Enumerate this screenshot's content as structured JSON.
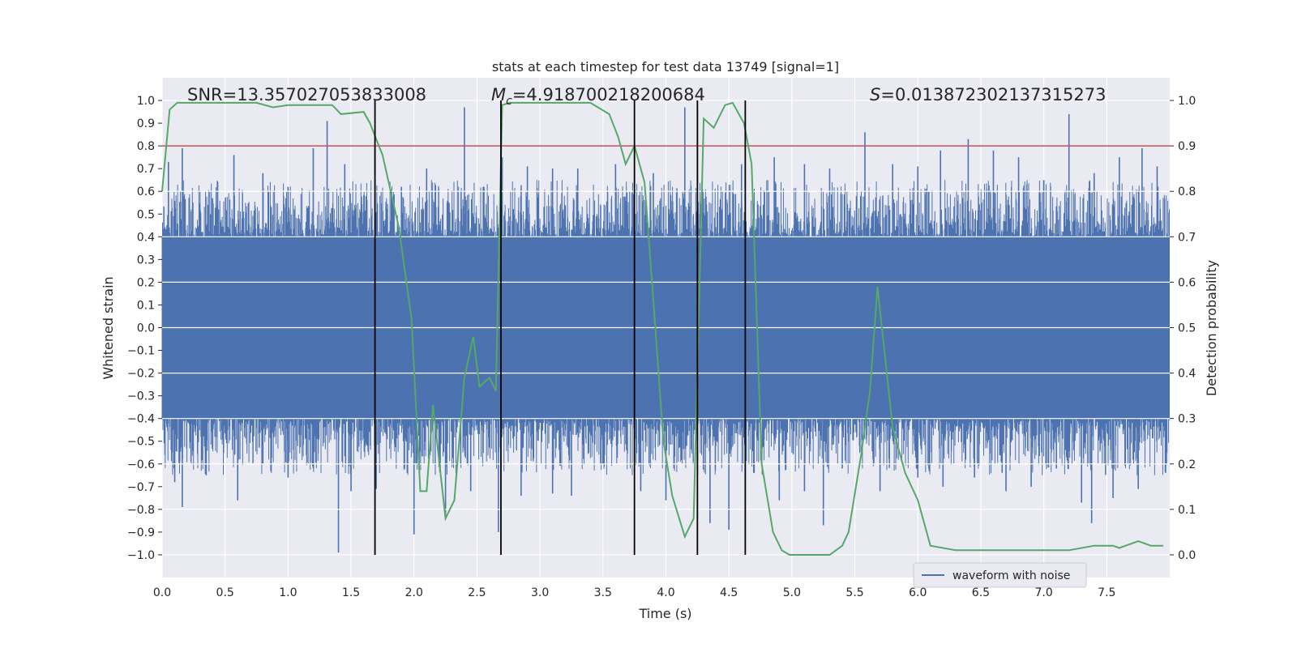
{
  "chart_data": {
    "type": "line",
    "title": "stats at each timestep for test data 13749 [signal=1]",
    "xlabel": "Time (s)",
    "ylabel_left": "Whitened strain",
    "ylabel_right": "Detection probability",
    "xlim": [
      0.0,
      8.0
    ],
    "ylim_left": [
      -1.1,
      1.1
    ],
    "ylim_right": [
      -0.05,
      1.05
    ],
    "x_ticks": [
      "0.0",
      "0.5",
      "1.0",
      "1.5",
      "2.0",
      "2.5",
      "3.0",
      "3.5",
      "4.0",
      "4.5",
      "5.0",
      "5.5",
      "6.0",
      "6.5",
      "7.0",
      "7.5"
    ],
    "y_left_ticks": [
      "1.0",
      "0.9",
      "0.8",
      "0.7",
      "0.6",
      "0.5",
      "0.4",
      "0.3",
      "0.2",
      "0.1",
      "0.0",
      "−0.1",
      "−0.2",
      "−0.3",
      "−0.4",
      "−0.5",
      "−0.6",
      "−0.7",
      "−0.8",
      "−0.9",
      "−1.0"
    ],
    "y_right_ticks": [
      "1.0",
      "0.9",
      "0.8",
      "0.7",
      "0.6",
      "0.5",
      "0.4",
      "0.3",
      "0.2",
      "0.1",
      "0.0"
    ],
    "grid": true,
    "legend": {
      "position": "lower-right",
      "entries": [
        "waveform with noise"
      ]
    },
    "annotations": {
      "snr": "SNR=13.357027053833008",
      "mc_symbol": "M",
      "mc_sub": "c",
      "mc_value": "=4.918700218200684",
      "s_symbol": "S",
      "s_value": "=0.013872302137315273"
    },
    "threshold": {
      "value": 0.9,
      "axis": "right",
      "color": "#c44e52"
    },
    "vlines": [
      1.69,
      2.69,
      3.75,
      4.25,
      4.63
    ],
    "series": [
      {
        "name": "waveform with noise",
        "axis": "left",
        "color": "#4c72b0",
        "description_only": "dense noise",
        "envelope": {
          "core_upper": 0.4,
          "core_lower": -0.4
        },
        "spikes_up": [
          [
            0.05,
            0.73
          ],
          [
            0.16,
            0.79
          ],
          [
            0.4,
            0.57
          ],
          [
            0.57,
            0.76
          ],
          [
            0.8,
            0.68
          ],
          [
            1.0,
            0.62
          ],
          [
            1.2,
            0.79
          ],
          [
            1.31,
            0.91
          ],
          [
            1.45,
            0.72
          ],
          [
            1.69,
            0.82
          ],
          [
            1.9,
            0.62
          ],
          [
            2.1,
            0.7
          ],
          [
            2.4,
            0.97
          ],
          [
            2.55,
            0.62
          ],
          [
            2.7,
            0.75
          ],
          [
            2.9,
            0.71
          ],
          [
            3.1,
            0.7
          ],
          [
            3.3,
            0.7
          ],
          [
            3.6,
            0.72
          ],
          [
            3.9,
            0.68
          ],
          [
            4.15,
            0.97
          ],
          [
            4.25,
            0.96
          ],
          [
            4.6,
            0.72
          ],
          [
            4.86,
            0.75
          ],
          [
            5.1,
            0.72
          ],
          [
            5.3,
            0.7
          ],
          [
            5.58,
            0.86
          ],
          [
            5.8,
            0.72
          ],
          [
            6.0,
            0.71
          ],
          [
            6.18,
            0.78
          ],
          [
            6.4,
            0.83
          ],
          [
            6.6,
            0.78
          ],
          [
            6.8,
            0.75
          ],
          [
            7.0,
            0.65
          ],
          [
            7.2,
            0.94
          ],
          [
            7.4,
            0.68
          ],
          [
            7.6,
            0.75
          ],
          [
            7.78,
            0.79
          ],
          [
            7.9,
            0.71
          ]
        ],
        "spikes_down": [
          [
            0.1,
            -0.68
          ],
          [
            0.16,
            -0.79
          ],
          [
            0.35,
            -0.65
          ],
          [
            0.6,
            -0.76
          ],
          [
            0.8,
            -0.6
          ],
          [
            1.0,
            -0.66
          ],
          [
            1.2,
            -0.62
          ],
          [
            1.4,
            -0.99
          ],
          [
            1.5,
            -0.72
          ],
          [
            1.7,
            -0.71
          ],
          [
            2.0,
            -0.91
          ],
          [
            2.25,
            -0.83
          ],
          [
            2.45,
            -0.72
          ],
          [
            2.67,
            -0.9
          ],
          [
            2.85,
            -0.74
          ],
          [
            3.1,
            -0.73
          ],
          [
            3.25,
            -0.74
          ],
          [
            3.5,
            -0.6
          ],
          [
            3.8,
            -0.72
          ],
          [
            4.0,
            -0.76
          ],
          [
            4.35,
            -0.86
          ],
          [
            4.5,
            -0.89
          ],
          [
            4.7,
            -0.64
          ],
          [
            4.9,
            -0.76
          ],
          [
            5.1,
            -0.72
          ],
          [
            5.25,
            -0.87
          ],
          [
            5.4,
            -0.62
          ],
          [
            5.7,
            -0.72
          ],
          [
            6.0,
            -0.66
          ],
          [
            6.2,
            -0.7
          ],
          [
            6.45,
            -0.66
          ],
          [
            6.7,
            -0.72
          ],
          [
            6.9,
            -0.7
          ],
          [
            7.1,
            -0.62
          ],
          [
            7.3,
            -0.77
          ],
          [
            7.38,
            -0.86
          ],
          [
            7.55,
            -0.75
          ],
          [
            7.75,
            -0.71
          ]
        ]
      },
      {
        "name": "",
        "axis": "right",
        "color": "#55a868",
        "x": [
          0.0,
          0.06,
          0.12,
          0.3,
          0.75,
          0.88,
          1.0,
          1.15,
          1.35,
          1.42,
          1.6,
          1.65,
          1.75,
          1.88,
          1.98,
          2.05,
          2.1,
          2.15,
          2.25,
          2.32,
          2.4,
          2.47,
          2.52,
          2.6,
          2.65,
          2.7,
          2.76,
          2.85,
          3.1,
          3.4,
          3.55,
          3.62,
          3.68,
          3.75,
          3.83,
          3.9,
          3.98,
          4.05,
          4.15,
          4.22,
          4.3,
          4.38,
          4.47,
          4.53,
          4.62,
          4.68,
          4.76,
          4.85,
          4.92,
          4.98,
          5.1,
          5.3,
          5.4,
          5.45,
          5.55,
          5.62,
          5.68,
          5.8,
          5.9,
          6.0,
          6.1,
          6.3,
          6.6,
          6.9,
          7.2,
          7.4,
          7.55,
          7.6,
          7.65,
          7.75,
          7.85,
          7.95
        ],
        "y": [
          0.8,
          0.98,
          0.995,
          0.995,
          0.995,
          0.985,
          0.99,
          0.99,
          0.99,
          0.97,
          0.975,
          0.95,
          0.88,
          0.72,
          0.52,
          0.14,
          0.14,
          0.33,
          0.08,
          0.12,
          0.39,
          0.48,
          0.37,
          0.39,
          0.36,
          0.99,
          0.995,
          0.995,
          0.995,
          0.995,
          0.97,
          0.92,
          0.86,
          0.9,
          0.82,
          0.56,
          0.25,
          0.13,
          0.04,
          0.08,
          0.96,
          0.94,
          0.99,
          0.995,
          0.95,
          0.86,
          0.2,
          0.05,
          0.01,
          0.0,
          0.0,
          0.0,
          0.02,
          0.05,
          0.22,
          0.36,
          0.59,
          0.28,
          0.18,
          0.12,
          0.02,
          0.01,
          0.01,
          0.01,
          0.01,
          0.02,
          0.02,
          0.015,
          0.02,
          0.03,
          0.02,
          0.02
        ]
      }
    ]
  }
}
